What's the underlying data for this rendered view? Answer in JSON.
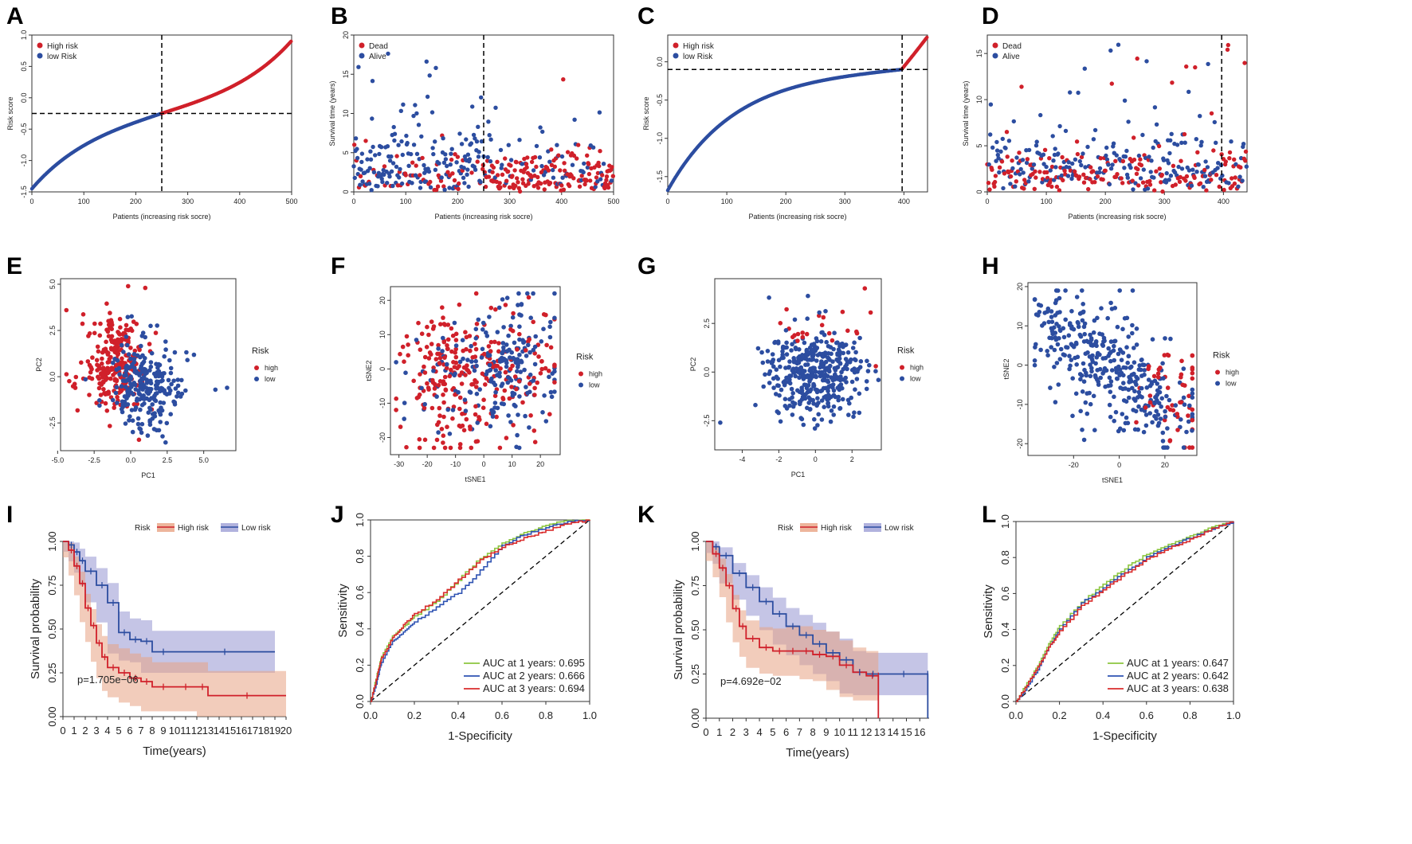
{
  "colors": {
    "high": "#d0202a",
    "low": "#2c4da0",
    "auc1": "#8cc63f",
    "auc2": "#2e52b2",
    "auc3": "#d92b2b",
    "high_band": "#e8a383",
    "low_band": "#9e9fd6"
  },
  "panels": {
    "A": "A",
    "B": "B",
    "C": "C",
    "D": "D",
    "E": "E",
    "F": "F",
    "G": "G",
    "H": "H",
    "I": "I",
    "J": "J",
    "K": "K",
    "L": "L"
  },
  "chart_data": [
    {
      "id": "A",
      "type": "scatter",
      "title": "",
      "xlabel": "Patients (increasing risk socre)",
      "ylabel": "Risk score",
      "xlim": [
        0,
        500
      ],
      "ylim": [
        -1.5,
        1.0
      ],
      "xticks": [
        "0",
        "100",
        "200",
        "300",
        "400",
        "500"
      ],
      "yticks": [
        "-1.5",
        "-1.0",
        "-0.5",
        "0.0",
        "0.5",
        "1.0"
      ],
      "legend": [
        "High risk",
        "low Risk"
      ],
      "n": 500,
      "cutoff_index": 250,
      "cutoff_value": -0.25,
      "range": [
        -1.45,
        0.9
      ]
    },
    {
      "id": "B",
      "type": "scatter",
      "xlabel": "Patients (increasing risk socre)",
      "ylabel": "Survival time (years)",
      "xlim": [
        0,
        500
      ],
      "ylim": [
        0,
        20
      ],
      "xticks": [
        "0",
        "100",
        "200",
        "300",
        "400",
        "500"
      ],
      "yticks": [
        "0",
        "5",
        "10",
        "15",
        "20"
      ],
      "legend": [
        "Dead",
        "Alive"
      ],
      "n": 500,
      "cutoff_index": 250
    },
    {
      "id": "C",
      "type": "scatter",
      "xlabel": "Patients (increasing risk socre)",
      "ylabel": "Risk score",
      "xlim": [
        0,
        440
      ],
      "ylim": [
        -1.7,
        0.35
      ],
      "xticks": [
        "0",
        "100",
        "200",
        "300",
        "400"
      ],
      "yticks": [
        "-1.5",
        "-1.0",
        "-0.5",
        "0.0"
      ],
      "legend": [
        "High risk",
        "low Risk"
      ],
      "n": 440,
      "cutoff_index": 397,
      "cutoff_value": -0.1,
      "range": [
        -1.68,
        0.32
      ]
    },
    {
      "id": "D",
      "type": "scatter",
      "xlabel": "Patients (increasing risk socre)",
      "ylabel": "Survival time (years)",
      "xlim": [
        0,
        440
      ],
      "ylim": [
        0,
        17
      ],
      "xticks": [
        "0",
        "100",
        "200",
        "300",
        "400"
      ],
      "yticks": [
        "0",
        "5",
        "10",
        "15"
      ],
      "legend": [
        "Dead",
        "Alive"
      ],
      "n": 440,
      "cutoff_index": 397
    },
    {
      "id": "E",
      "type": "scatter",
      "xlabel": "PC1",
      "ylabel": "PC2",
      "xlim": [
        -4.8,
        7.2
      ],
      "ylim": [
        -4.0,
        5.3
      ],
      "xticks": [
        "-5.0",
        "-2.5",
        "0.0",
        "2.5",
        "5.0"
      ],
      "yticks": [
        "-2.5",
        "0.0",
        "2.5",
        "5.0"
      ],
      "legend_title": "Risk",
      "legend": [
        "high",
        "low"
      ]
    },
    {
      "id": "F",
      "type": "scatter",
      "xlabel": "tSNE1",
      "ylabel": "tSNE2",
      "xlim": [
        -33,
        27
      ],
      "ylim": [
        -25,
        24
      ],
      "xticks": [
        "-30",
        "-20",
        "-10",
        "0",
        "10",
        "20"
      ],
      "yticks": [
        "-20",
        "-10",
        "0",
        "10",
        "20"
      ],
      "legend_title": "Risk",
      "legend": [
        "high",
        "low"
      ]
    },
    {
      "id": "G",
      "type": "scatter",
      "xlabel": "PC1",
      "ylabel": "PC2",
      "xlim": [
        -5.5,
        3.6
      ],
      "ylim": [
        -4.0,
        4.8
      ],
      "xticks": [
        "-4",
        "-2",
        "0",
        "2"
      ],
      "yticks": [
        "-2.5",
        "0.0",
        "2.5"
      ],
      "legend_title": "Risk",
      "legend": [
        "high",
        "low"
      ]
    },
    {
      "id": "H",
      "type": "scatter",
      "xlabel": "tSNE1",
      "ylabel": "tSNE2",
      "xlim": [
        -40,
        34
      ],
      "ylim": [
        -23,
        21
      ],
      "xticks": [
        "-20",
        "0",
        "20"
      ],
      "yticks": [
        "-20",
        "-10",
        "0",
        "10",
        "20"
      ],
      "legend_title": "Risk",
      "legend": [
        "high",
        "low"
      ]
    },
    {
      "id": "I",
      "type": "line",
      "xlabel": "Time(years)",
      "ylabel": "Survival probability",
      "xlim": [
        0,
        20
      ],
      "ylim": [
        0,
        1
      ],
      "xticks": [
        "0",
        "1",
        "2",
        "3",
        "4",
        "5",
        "6",
        "7",
        "8",
        "9",
        "10",
        "11",
        "12",
        "13",
        "14",
        "15",
        "16",
        "17",
        "18",
        "19",
        "20"
      ],
      "yticks": [
        "0.00",
        "0.25",
        "0.50",
        "0.75",
        "1.00"
      ],
      "legend_title": "Risk",
      "legend": [
        "High risk",
        "Low risk"
      ],
      "pvalue": "p=1.705e−06",
      "series": [
        {
          "name": "High risk",
          "x": [
            0,
            0.5,
            1,
            1.5,
            2,
            2.5,
            3,
            3.5,
            4,
            5,
            6,
            7,
            8,
            10,
            12,
            13,
            20
          ],
          "y": [
            1,
            0.95,
            0.86,
            0.76,
            0.62,
            0.52,
            0.42,
            0.34,
            0.28,
            0.25,
            0.22,
            0.2,
            0.17,
            0.17,
            0.17,
            0.12,
            0.12
          ]
        },
        {
          "name": "Low risk",
          "x": [
            0,
            0.5,
            1,
            1.5,
            2,
            3,
            4,
            5,
            6,
            7,
            8,
            10,
            19
          ],
          "y": [
            1,
            0.98,
            0.94,
            0.89,
            0.83,
            0.75,
            0.65,
            0.48,
            0.44,
            0.43,
            0.37,
            0.37,
            0.37
          ]
        }
      ]
    },
    {
      "id": "J",
      "type": "line",
      "xlabel": "1-Specificity",
      "ylabel": "Sensitivity",
      "xlim": [
        0,
        1
      ],
      "ylim": [
        0,
        1
      ],
      "xticks": [
        "0.0",
        "0.2",
        "0.4",
        "0.6",
        "0.8",
        "1.0"
      ],
      "yticks": [
        "0.0",
        "0.2",
        "0.4",
        "0.6",
        "0.8",
        "1.0"
      ],
      "series": [
        {
          "name": "AUC at 1 years: 0.695",
          "x": [
            0,
            0.03,
            0.05,
            0.1,
            0.15,
            0.2,
            0.3,
            0.4,
            0.5,
            0.6,
            0.7,
            0.8,
            0.9,
            1
          ],
          "y": [
            0,
            0.15,
            0.25,
            0.36,
            0.41,
            0.47,
            0.55,
            0.67,
            0.79,
            0.87,
            0.93,
            0.97,
            1,
            1
          ]
        },
        {
          "name": "AUC at 2 years: 0.666",
          "x": [
            0,
            0.03,
            0.05,
            0.1,
            0.15,
            0.2,
            0.3,
            0.4,
            0.5,
            0.6,
            0.7,
            0.8,
            0.9,
            1
          ],
          "y": [
            0,
            0.12,
            0.22,
            0.33,
            0.38,
            0.44,
            0.52,
            0.6,
            0.72,
            0.86,
            0.92,
            0.96,
            0.99,
            1
          ]
        },
        {
          "name": "AUC at 3 years: 0.694",
          "x": [
            0,
            0.03,
            0.05,
            0.1,
            0.15,
            0.2,
            0.3,
            0.4,
            0.5,
            0.6,
            0.7,
            0.8,
            0.9,
            1
          ],
          "y": [
            0,
            0.14,
            0.24,
            0.35,
            0.42,
            0.48,
            0.56,
            0.67,
            0.78,
            0.85,
            0.9,
            0.94,
            0.98,
            1
          ]
        }
      ]
    },
    {
      "id": "K",
      "type": "line",
      "xlabel": "Time(years)",
      "ylabel": "Survival probability",
      "xlim": [
        0,
        16.7
      ],
      "ylim": [
        0,
        1
      ],
      "xticks": [
        "0",
        "1",
        "2",
        "3",
        "4",
        "5",
        "6",
        "7",
        "8",
        "9",
        "10",
        "11",
        "12",
        "13",
        "14",
        "15",
        "16"
      ],
      "yticks": [
        "0.00",
        "0.25",
        "0.50",
        "0.75",
        "1.00"
      ],
      "legend_title": "Risk",
      "legend": [
        "High risk",
        "Low risk"
      ],
      "pvalue": "p=4.692e−02",
      "series": [
        {
          "name": "High risk",
          "x": [
            0,
            0.5,
            1,
            1.5,
            2,
            2.5,
            3,
            4,
            5,
            6,
            7,
            8,
            9,
            10,
            11,
            12,
            12.9,
            12.9
          ],
          "y": [
            1,
            0.93,
            0.85,
            0.75,
            0.62,
            0.52,
            0.45,
            0.4,
            0.38,
            0.38,
            0.38,
            0.36,
            0.35,
            0.3,
            0.26,
            0.24,
            0.24,
            0
          ]
        },
        {
          "name": "Low risk",
          "x": [
            0,
            0.5,
            1,
            2,
            3,
            4,
            5,
            6,
            7,
            8,
            9,
            10,
            11,
            12,
            13,
            16.6,
            16.6
          ],
          "y": [
            1,
            0.97,
            0.92,
            0.82,
            0.74,
            0.66,
            0.59,
            0.52,
            0.47,
            0.42,
            0.37,
            0.33,
            0.26,
            0.25,
            0.25,
            0.25,
            0
          ]
        }
      ]
    },
    {
      "id": "L",
      "type": "line",
      "xlabel": "1-Specificity",
      "ylabel": "Sensitivity",
      "xlim": [
        0,
        1
      ],
      "ylim": [
        0,
        1
      ],
      "xticks": [
        "0.0",
        "0.2",
        "0.4",
        "0.6",
        "0.8",
        "1.0"
      ],
      "yticks": [
        "0.0",
        "0.2",
        "0.4",
        "0.6",
        "0.8",
        "1.0"
      ],
      "series": [
        {
          "name": "AUC at 1 years: 0.647",
          "x": [
            0,
            0.05,
            0.1,
            0.15,
            0.2,
            0.3,
            0.4,
            0.5,
            0.6,
            0.7,
            0.8,
            0.9,
            1
          ],
          "y": [
            0,
            0.1,
            0.2,
            0.32,
            0.42,
            0.55,
            0.65,
            0.74,
            0.82,
            0.87,
            0.92,
            0.97,
            1
          ]
        },
        {
          "name": "AUC at 2 years: 0.642",
          "x": [
            0,
            0.05,
            0.1,
            0.15,
            0.2,
            0.3,
            0.4,
            0.5,
            0.6,
            0.7,
            0.8,
            0.9,
            1
          ],
          "y": [
            0,
            0.08,
            0.18,
            0.3,
            0.4,
            0.55,
            0.63,
            0.72,
            0.8,
            0.86,
            0.91,
            0.96,
            1
          ]
        },
        {
          "name": "AUC at 3 years: 0.638",
          "x": [
            0,
            0.05,
            0.1,
            0.15,
            0.2,
            0.3,
            0.4,
            0.5,
            0.6,
            0.7,
            0.8,
            0.9,
            1
          ],
          "y": [
            0,
            0.09,
            0.19,
            0.3,
            0.39,
            0.53,
            0.62,
            0.71,
            0.79,
            0.85,
            0.9,
            0.96,
            1
          ]
        }
      ]
    }
  ]
}
